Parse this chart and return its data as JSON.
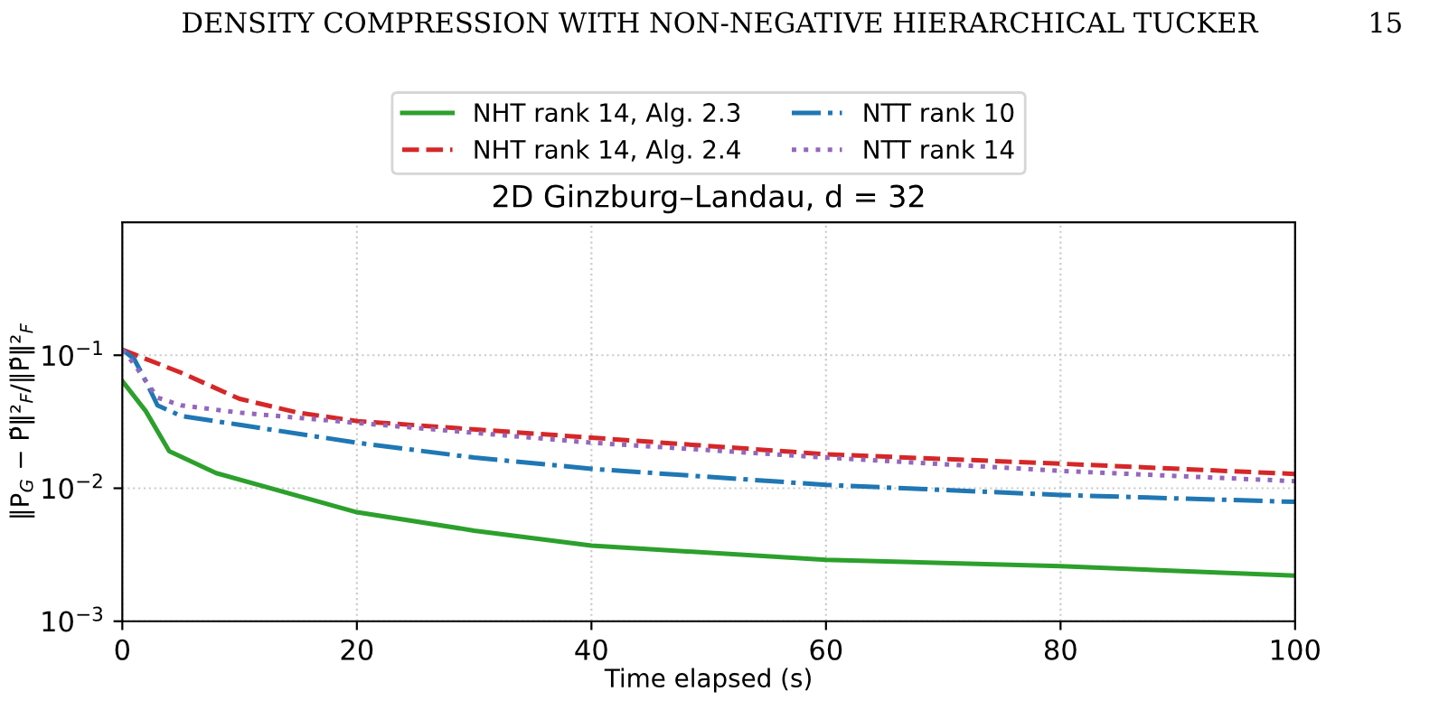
{
  "chart_data": {
    "type": "line",
    "title": "2D Ginzburg–Landau, d = 32",
    "xlabel": "Time elapsed (s)",
    "ylabel": "‖P$_{G}$ − P̃‖²$_{F}$/‖P̃‖²$_{F}$",
    "annotations": [
      "DENSITY COMPRESSION WITH NON-NEGATIVE HIERARCHICAL TUCKER",
      "15"
    ],
    "log": "y",
    "grid": true,
    "legend": "top",
    "xlim": [
      0,
      100
    ],
    "xticks": [
      0,
      20,
      40,
      60,
      80,
      100
    ],
    "ylim": [
      0.001,
      1
    ],
    "yticks": [
      {
        "value": 0.001,
        "label": "10$^{−3}$"
      },
      {
        "value": 0.01,
        "label": "10$^{−2}$"
      },
      {
        "value": 0.1,
        "label": "10$^{−1}$"
      }
    ],
    "series": [
      {
        "name": "NHT rank 14, Alg. 2.3",
        "color": "#2ca02c",
        "line_style": "solid",
        "x": [
          0,
          2,
          4,
          8,
          20,
          30,
          40,
          60,
          80,
          100
        ],
        "values": [
          0.064,
          0.038,
          0.019,
          0.013,
          0.0066,
          0.0048,
          0.0037,
          0.0029,
          0.0026,
          0.0022
        ]
      },
      {
        "name": "NHT rank 14, Alg. 2.4",
        "color": "#d62728",
        "line_style": "dashed",
        "x": [
          0,
          5,
          10,
          15,
          20,
          40,
          60,
          80,
          100
        ],
        "values": [
          0.11,
          0.074,
          0.047,
          0.037,
          0.032,
          0.024,
          0.018,
          0.0153,
          0.0128
        ]
      },
      {
        "name": "NTT rank 10",
        "color": "#1f77b4",
        "line_style": "dashdot",
        "x": [
          0,
          1,
          2,
          3,
          5,
          10,
          20,
          30,
          40,
          60,
          80,
          100
        ],
        "values": [
          0.11,
          0.094,
          0.064,
          0.042,
          0.035,
          0.03,
          0.022,
          0.017,
          0.014,
          0.0106,
          0.0089,
          0.0079
        ]
      },
      {
        "name": "NTT rank 14",
        "color": "#9467bd",
        "line_style": "dotted",
        "x": [
          0,
          1,
          2,
          3,
          5,
          10,
          20,
          40,
          60,
          80,
          100
        ],
        "values": [
          0.11,
          0.086,
          0.064,
          0.048,
          0.042,
          0.037,
          0.031,
          0.022,
          0.017,
          0.0135,
          0.0113
        ]
      }
    ]
  }
}
